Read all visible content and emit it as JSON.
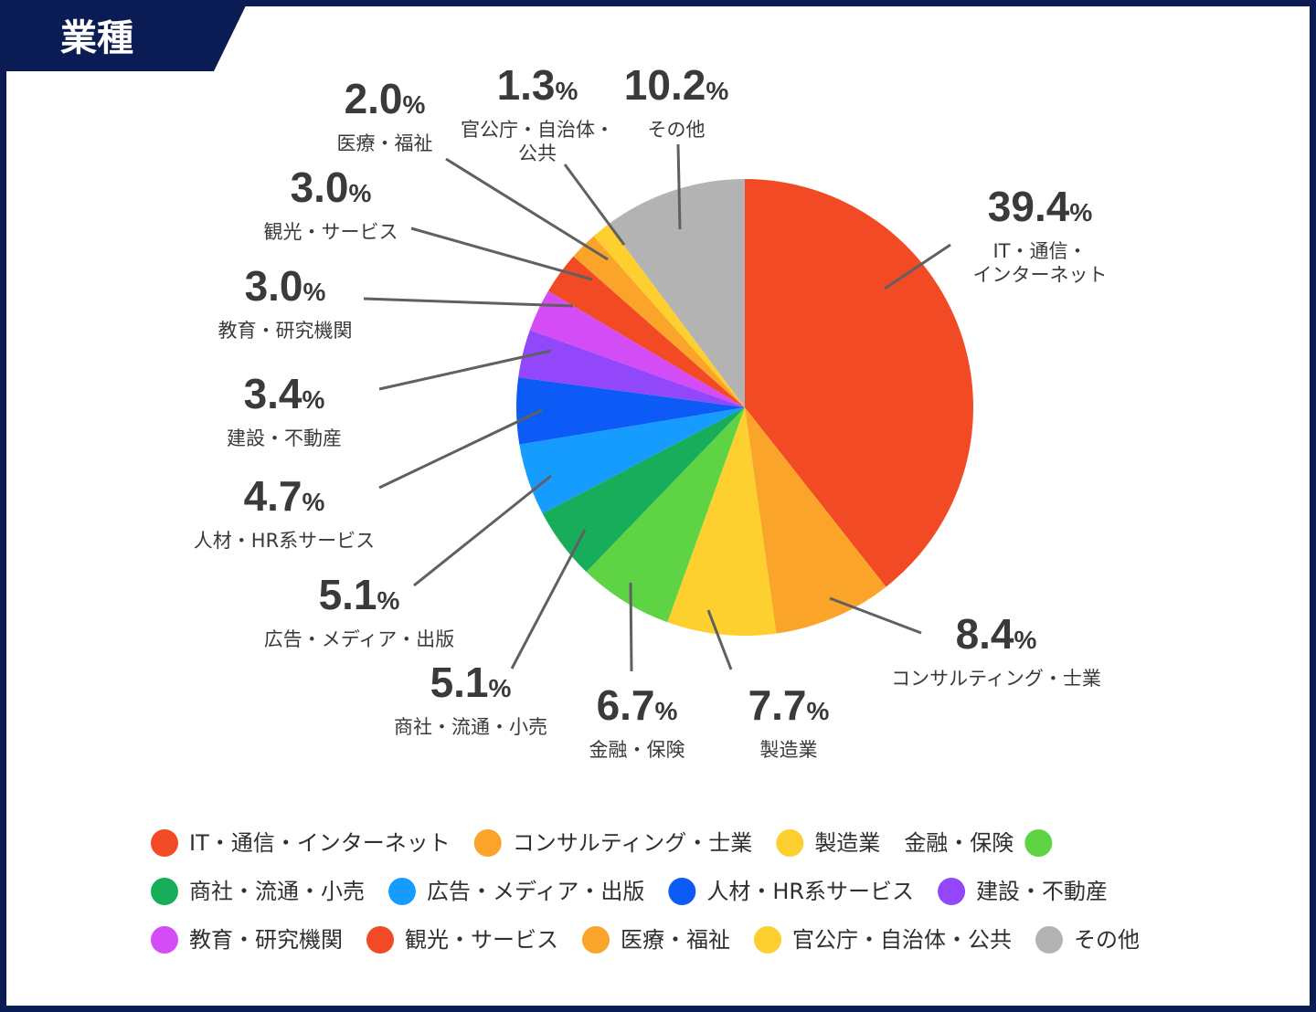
{
  "header": {
    "title": "業種"
  },
  "colors": {
    "frame": "#0b1c55",
    "leader": "#606060",
    "text": "#3a3a3a"
  },
  "chart_data": {
    "type": "pie",
    "title": "",
    "unit": "%",
    "slices": [
      {
        "label": "IT・通信・インターネット",
        "value": 39.4,
        "value_text": "39.4",
        "color": "#f24a24",
        "label_lines": [
          "IT・通信・",
          "インターネット"
        ]
      },
      {
        "label": "コンサルティング・士業",
        "value": 8.4,
        "value_text": "8.4",
        "color": "#fba42a",
        "label_lines": [
          "コンサルティング・士業"
        ]
      },
      {
        "label": "製造業",
        "value": 7.7,
        "value_text": "7.7",
        "color": "#fdd02f",
        "label_lines": [
          "製造業"
        ]
      },
      {
        "label": "金融・保険",
        "value": 6.7,
        "value_text": "6.7",
        "color": "#5ed344",
        "label_lines": [
          "金融・保険"
        ]
      },
      {
        "label": "商社・流通・小売",
        "value": 5.1,
        "value_text": "5.1",
        "color": "#18ad5a",
        "label_lines": [
          "商社・流通・小売"
        ]
      },
      {
        "label": "広告・メディア・出版",
        "value": 5.1,
        "value_text": "5.1",
        "color": "#169bff",
        "label_lines": [
          "広告・メディア・出版"
        ]
      },
      {
        "label": "人材・HR系サービス",
        "value": 4.7,
        "value_text": "4.7",
        "color": "#0c5bf6",
        "label_lines": [
          "人材・HR系サービス"
        ]
      },
      {
        "label": "建設・不動産",
        "value": 3.4,
        "value_text": "3.4",
        "color": "#9247fb",
        "label_lines": [
          "建設・不動産"
        ]
      },
      {
        "label": "教育・研究機関",
        "value": 3.0,
        "value_text": "3.0",
        "color": "#d34cf6",
        "label_lines": [
          "教育・研究機関"
        ]
      },
      {
        "label": "観光・サービス",
        "value": 3.0,
        "value_text": "3.0",
        "color": "#f24a24",
        "label_lines": [
          "観光・サービス"
        ]
      },
      {
        "label": "医療・福祉",
        "value": 2.0,
        "value_text": "2.0",
        "color": "#fba42a",
        "label_lines": [
          "医療・福祉"
        ]
      },
      {
        "label": "官公庁・自治体・公共",
        "value": 1.3,
        "value_text": "1.3",
        "color": "#fdd02f",
        "label_lines": [
          "官公庁・自治体・",
          "公共"
        ]
      },
      {
        "label": "その他",
        "value": 10.2,
        "value_text": "10.2",
        "color": "#b3b3b3",
        "label_lines": [
          "その他"
        ]
      }
    ],
    "legend": {
      "placement": "bottom",
      "rows": [
        [
          {
            "label": "IT・通信・インターネット",
            "color": "#f24a24",
            "marker": "left"
          },
          {
            "label": "コンサルティング・士業",
            "color": "#fba42a",
            "marker": "left"
          },
          {
            "label": "製造業",
            "color": "#fdd02f",
            "marker": "left"
          },
          {
            "label": "金融・保険",
            "color": "#5ed344",
            "marker": "right"
          }
        ],
        [
          {
            "label": "商社・流通・小売",
            "color": "#18ad5a",
            "marker": "left"
          },
          {
            "label": "広告・メディア・出版",
            "color": "#169bff",
            "marker": "left"
          },
          {
            "label": "人材・HR系サービス",
            "color": "#0c5bf6",
            "marker": "left"
          },
          {
            "label": "建設・不動産",
            "color": "#9247fb",
            "marker": "left"
          }
        ],
        [
          {
            "label": "教育・研究機関",
            "color": "#d34cf6",
            "marker": "left"
          },
          {
            "label": "観光・サービス",
            "color": "#f24a24",
            "marker": "left"
          },
          {
            "label": "医療・福祉",
            "color": "#fba42a",
            "marker": "left"
          },
          {
            "label": "官公庁・自治体・公共",
            "color": "#fdd02f",
            "marker": "left"
          },
          {
            "label": "その他",
            "color": "#b3b3b3",
            "marker": "left"
          }
        ]
      ]
    }
  }
}
